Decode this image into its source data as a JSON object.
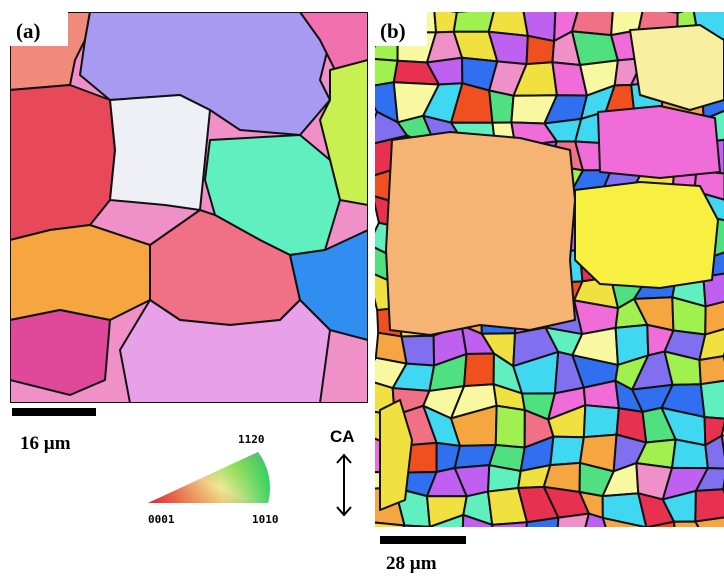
{
  "panels": [
    {
      "label": "(a)",
      "scale_bar": "16 µm"
    },
    {
      "label": "(b)",
      "scale_bar": "28 µm"
    }
  ],
  "legend": {
    "top": "1120",
    "left": "0001",
    "right": "1010"
  },
  "axis_label": "CA"
}
